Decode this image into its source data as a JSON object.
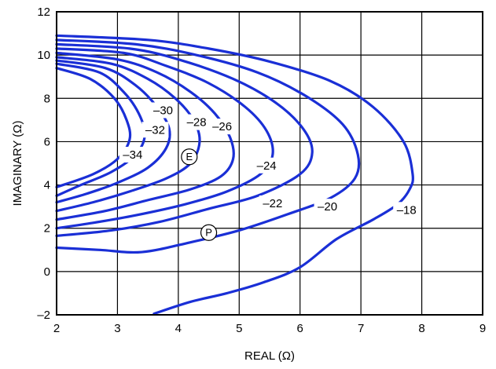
{
  "chart_data": {
    "type": "line",
    "title": "",
    "xlabel": "REAL (Ω)",
    "ylabel": "IMAGINARY (Ω)",
    "xlim": [
      2,
      9
    ],
    "ylim": [
      -2,
      12
    ],
    "xticks": [
      2,
      3,
      4,
      5,
      6,
      7,
      8,
      9
    ],
    "yticks": [
      -2,
      0,
      2,
      4,
      6,
      8,
      10,
      12
    ],
    "xtick_labels": [
      "2",
      "3",
      "4",
      "5",
      "6",
      "7",
      "8",
      "9"
    ],
    "ytick_labels": [
      "–2",
      "0",
      "2",
      "4",
      "6",
      "8",
      "10",
      "12"
    ],
    "grid": true,
    "line_color": "#1a2fd6",
    "series": [
      {
        "name": "–18",
        "label_at": [
          7.75,
          2.85
        ],
        "x": [
          2.0,
          3.5,
          4.5,
          5.5,
          6.5,
          7.2,
          7.7,
          7.85,
          7.8,
          7.6,
          7.2,
          6.6,
          6.0,
          5.4,
          4.8,
          4.2,
          3.6
        ],
        "y": [
          10.9,
          10.7,
          10.3,
          9.7,
          8.8,
          7.6,
          6.0,
          4.5,
          3.8,
          3.1,
          2.4,
          1.5,
          0.2,
          -0.5,
          -1.0,
          -1.4,
          -1.95
        ]
      },
      {
        "name": "–20",
        "label_at": [
          6.45,
          3.0
        ],
        "x": [
          2.0,
          3.3,
          4.3,
          5.3,
          6.1,
          6.7,
          6.95,
          6.9,
          6.5,
          5.8,
          5.0,
          4.2,
          3.4,
          2.7,
          2.0
        ],
        "y": [
          10.7,
          10.5,
          10.0,
          9.2,
          8.1,
          6.8,
          5.4,
          4.3,
          3.4,
          2.65,
          1.9,
          1.35,
          0.9,
          1.0,
          1.1
        ]
      },
      {
        "name": "–22",
        "label_at": [
          5.55,
          3.15
        ],
        "x": [
          2.0,
          3.2,
          4.0,
          4.9,
          5.6,
          6.05,
          6.2,
          6.0,
          5.3,
          4.5,
          3.7,
          2.9,
          2.0
        ],
        "y": [
          10.5,
          10.3,
          9.8,
          8.9,
          7.8,
          6.6,
          5.5,
          4.5,
          3.5,
          2.9,
          2.3,
          1.9,
          1.65
        ]
      },
      {
        "name": "–24",
        "label_at": [
          5.45,
          4.9
        ],
        "x": [
          2.0,
          3.1,
          3.8,
          4.5,
          5.1,
          5.45,
          5.55,
          5.35,
          4.8,
          4.1,
          3.3,
          2.6,
          2.0
        ],
        "y": [
          10.3,
          10.1,
          9.5,
          8.7,
          7.6,
          6.5,
          5.4,
          4.5,
          3.7,
          3.1,
          2.6,
          2.25,
          2.0
        ]
      },
      {
        "name": "–26",
        "label_at": [
          4.72,
          6.7
        ],
        "x": [
          2.0,
          3.0,
          3.65,
          4.2,
          4.6,
          4.85,
          4.9,
          4.7,
          4.2,
          3.5,
          2.8,
          2.0
        ],
        "y": [
          10.1,
          9.8,
          9.2,
          8.3,
          7.3,
          6.2,
          5.2,
          4.4,
          3.8,
          3.3,
          2.8,
          2.4
        ]
      },
      {
        "name": "–28",
        "label_at": [
          4.3,
          6.9
        ],
        "x": [
          2.0,
          2.9,
          3.5,
          3.95,
          4.25,
          4.35,
          4.2,
          3.8,
          3.2,
          2.6,
          2.0
        ],
        "y": [
          9.9,
          9.6,
          8.9,
          8.0,
          7.0,
          6.0,
          5.0,
          4.3,
          3.7,
          3.2,
          2.8
        ]
      },
      {
        "name": "–30",
        "label_at": [
          3.75,
          7.45
        ],
        "x": [
          2.0,
          2.8,
          3.3,
          3.65,
          3.85,
          3.8,
          3.5,
          3.0,
          2.5,
          2.0
        ],
        "y": [
          9.75,
          9.4,
          8.6,
          7.6,
          6.6,
          5.7,
          4.8,
          4.1,
          3.6,
          3.2
        ]
      },
      {
        "name": "–32",
        "label_at": [
          3.62,
          6.55
        ],
        "x": [
          2.0,
          2.7,
          3.1,
          3.35,
          3.45,
          3.3,
          2.9,
          2.4,
          2.0
        ],
        "y": [
          9.6,
          9.2,
          8.3,
          7.3,
          6.3,
          5.4,
          4.6,
          4.0,
          3.5
        ]
      },
      {
        "name": "–34",
        "label_at": [
          3.25,
          5.4
        ],
        "x": [
          2.0,
          2.55,
          2.95,
          3.15,
          3.2,
          3.0,
          2.6,
          2.0
        ],
        "y": [
          9.4,
          8.9,
          8.0,
          7.0,
          6.1,
          5.2,
          4.5,
          3.9
        ]
      }
    ],
    "markers": [
      {
        "label": "E",
        "x": 4.18,
        "y": 5.3
      },
      {
        "label": "P",
        "x": 4.5,
        "y": 1.8
      }
    ]
  }
}
